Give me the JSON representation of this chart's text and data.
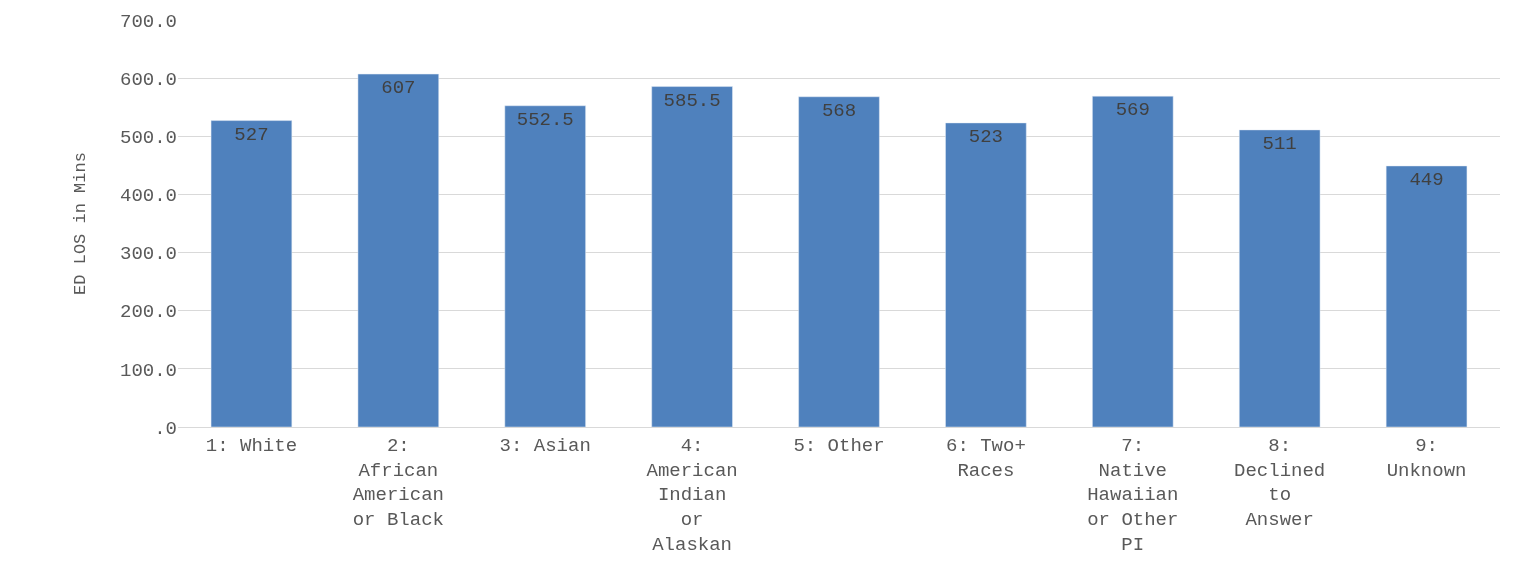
{
  "chart_data": {
    "type": "bar",
    "ylabel": "ED LOS in Mins",
    "categories": [
      "1: White",
      "2: African American or Black",
      "3: Asian",
      "4: American Indian or Alaskan",
      "5: Other",
      "6: Two+ Races",
      "7: Native Hawaiian or Other PI",
      "8: Declined to Answer",
      "9: Unknown"
    ],
    "values": [
      527,
      607,
      552.5,
      585.5,
      568,
      523,
      569,
      511,
      449
    ],
    "color": "#4f81bd",
    "ylim": [
      0,
      700
    ],
    "yticks": [
      {
        "value": 0,
        "label": ".0"
      },
      {
        "value": 100,
        "label": "100.0"
      },
      {
        "value": 200,
        "label": "200.0"
      },
      {
        "value": 300,
        "label": "300.0"
      },
      {
        "value": 400,
        "label": "400.0"
      },
      {
        "value": 500,
        "label": "500.0"
      },
      {
        "value": 600,
        "label": "600.0"
      },
      {
        "value": 700,
        "label": "700.0"
      }
    ],
    "grid": "y",
    "data_labels": true
  }
}
